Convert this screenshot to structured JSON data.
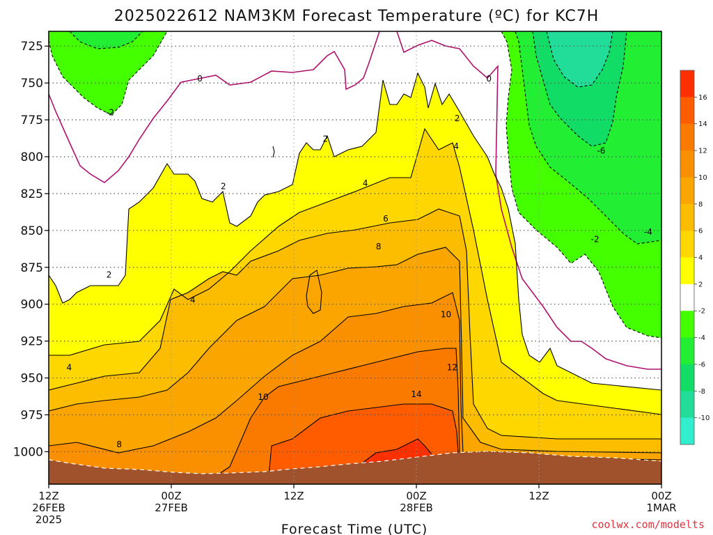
{
  "title": "2025022612 NAM3KM Forecast Temperature (ºC) for KC7H",
  "xlabel": "Forecast Time (UTC)",
  "credit": "coolwx.com/modelts",
  "chart_data": {
    "type": "heatmap",
    "title": "2025022612 NAM3KM Forecast Temperature (ºC) for KC7H",
    "xlabel": "Forecast Time (UTC)",
    "ylabel": "",
    "x_ticks": [
      {
        "hour": 0,
        "lines": [
          "12Z",
          "26FEB",
          "2025"
        ]
      },
      {
        "hour": 12,
        "lines": [
          "00Z",
          "27FEB"
        ]
      },
      {
        "hour": 24,
        "lines": [
          "12Z"
        ]
      },
      {
        "hour": 36,
        "lines": [
          "00Z",
          "28FEB"
        ]
      },
      {
        "hour": 48,
        "lines": [
          "12Z"
        ]
      },
      {
        "hour": 60,
        "lines": [
          "00Z",
          "1MAR"
        ]
      }
    ],
    "y_ticks": [
      "725",
      "750",
      "775",
      "800",
      "825",
      "850",
      "875",
      "900",
      "925",
      "950",
      "975",
      "1000"
    ],
    "ylim": [
      1022,
      715
    ],
    "xlim": [
      0,
      60
    ],
    "grid": true,
    "colorbar": {
      "labels": [
        "16",
        "14",
        "12",
        "10",
        "8",
        "6",
        "4",
        "2",
        "-2",
        "-4",
        "-6",
        "-8",
        "-10"
      ],
      "colors": [
        "#ff3000",
        "#ff5c00",
        "#fa7a00",
        "#fa9000",
        "#fba600",
        "#fcbc00",
        "#fed600",
        "#ffff00",
        "#ffffff",
        "#44ff00",
        "#22ee33",
        "#11dd66",
        "#22dd99",
        "#33eecc"
      ]
    },
    "contour_labels": [
      {
        "text": "0",
        "hour": 14.8,
        "p": 747
      },
      {
        "text": "0",
        "hour": 43.1,
        "p": 747
      },
      {
        "text": "-2",
        "hour": 6.0,
        "p": 770
      },
      {
        "text": "-6",
        "hour": 54.1,
        "p": 796
      },
      {
        "text": "-2",
        "hour": 53.5,
        "p": 856
      },
      {
        "text": "-4",
        "hour": 58.7,
        "p": 851
      },
      {
        "text": "2",
        "hour": 27.1,
        "p": 788
      },
      {
        "text": "2",
        "hour": 40.0,
        "p": 774
      },
      {
        "text": "2",
        "hour": 17.1,
        "p": 820
      },
      {
        "text": "2",
        "hour": 5.9,
        "p": 880
      },
      {
        "text": "4",
        "hour": 39.9,
        "p": 793
      },
      {
        "text": "4",
        "hour": 31.0,
        "p": 818
      },
      {
        "text": "4",
        "hour": 14.1,
        "p": 897
      },
      {
        "text": "4",
        "hour": 2.0,
        "p": 943
      },
      {
        "text": "6",
        "hour": 33.0,
        "p": 842
      },
      {
        "text": "8",
        "hour": 32.3,
        "p": 861
      },
      {
        "text": "8",
        "hour": 6.9,
        "p": 995
      },
      {
        "text": "10",
        "hour": 38.9,
        "p": 907
      },
      {
        "text": "10",
        "hour": 21.0,
        "p": 963
      },
      {
        "text": "12",
        "hour": 39.5,
        "p": 943
      },
      {
        "text": "14",
        "hour": 36.0,
        "p": 961
      }
    ]
  }
}
